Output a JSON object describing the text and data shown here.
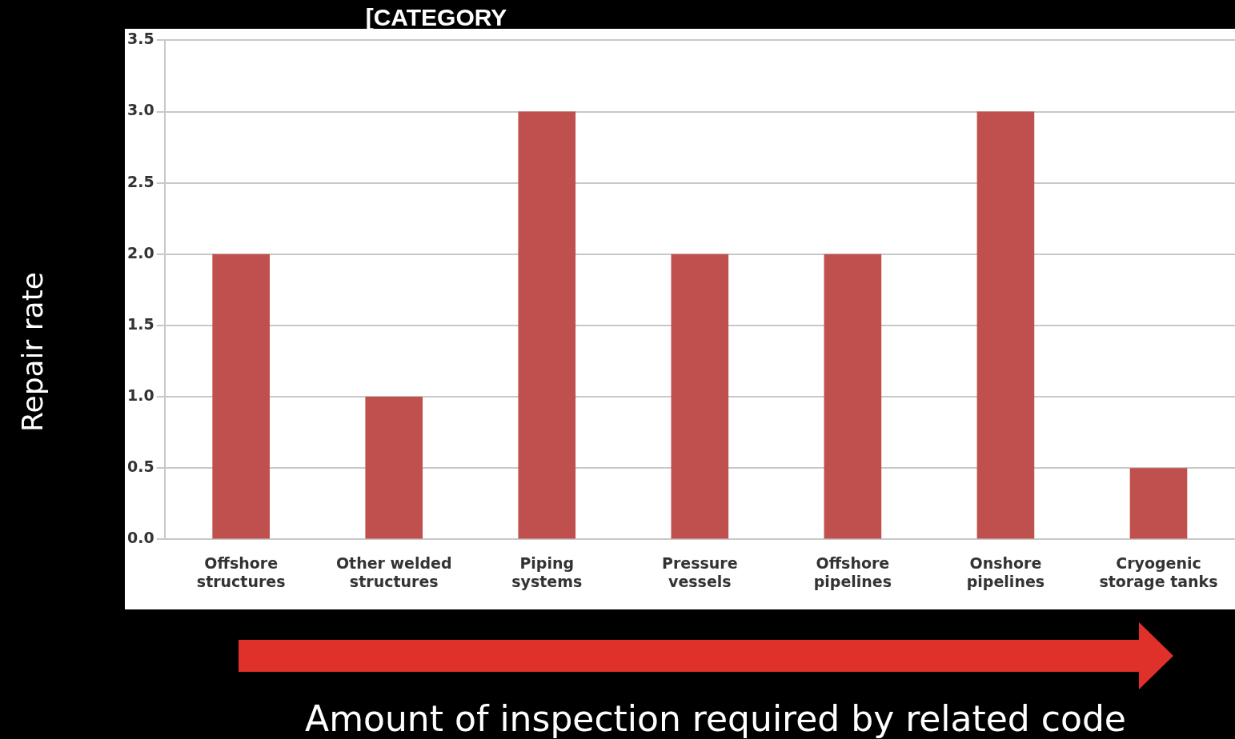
{
  "chart_data": {
    "type": "bar",
    "categories": [
      "Offshore structures",
      "Other welded structures",
      "Piping systems",
      "Pressure vessels",
      "Offshore pipelines",
      "Onshore pipelines",
      "Cryogenic storage tanks"
    ],
    "values": [
      2,
      1,
      3,
      2,
      2,
      3,
      0.5
    ],
    "color": "#c0504d",
    "ylabel": "Repair rate",
    "xlabel": "Amount of inspection required by related code",
    "annotations": [
      "[CATEGORY"
    ],
    "ylim": [
      0,
      3.5
    ],
    "yticks": [
      {
        "value": 0,
        "label": "0.0"
      },
      {
        "value": 0.5,
        "label": "0.5"
      },
      {
        "value": 1,
        "label": "1.0"
      },
      {
        "value": 1.5,
        "label": "1.5"
      },
      {
        "value": 2,
        "label": "2.0"
      },
      {
        "value": 2.5,
        "label": "2.5"
      },
      {
        "value": 3,
        "label": "3.0"
      },
      {
        "value": 3.5,
        "label": "3.5"
      }
    ],
    "grid": "y",
    "legend": false
  }
}
